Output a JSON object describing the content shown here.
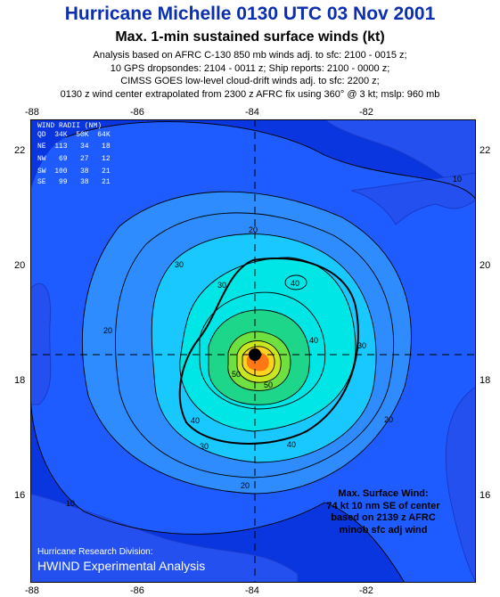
{
  "header": {
    "title": "Hurricane Michelle 0130 UTC 03 Nov 2001",
    "subtitle": "Max. 1-min sustained surface winds (kt)",
    "notes": [
      "Analysis based on AFRC C-130 850 mb winds adj. to sfc: 2100 - 0015 z;",
      "10 GPS dropsondes: 2104 - 0011 z; Ship reports: 2100 - 0000 z;",
      "CIMSS GOES low-level cloud-drift winds adj. to sfc: 2200 z;",
      "0130 z wind center extrapolated from 2300 z AFRC fix using 360° @ 3 kt; mslp: 960 mb"
    ]
  },
  "axes": {
    "lon_labels": [
      "-88",
      "-86",
      "-84",
      "-82"
    ],
    "lat_labels": [
      "22",
      "20",
      "18",
      "16"
    ]
  },
  "wind_radii": {
    "title": "WIND RADII (NM)",
    "header": "QD  34K  50K  64K",
    "rows": [
      "NE  113   34   18",
      "NW   69   27   12",
      "SW  100   38   21",
      "SE   99   38   21"
    ]
  },
  "contour_labels": [
    "10",
    "10",
    "20",
    "20",
    "20",
    "20",
    "30",
    "30",
    "30",
    "30",
    "40",
    "40",
    "40",
    "40",
    "50",
    "50"
  ],
  "max_wind": [
    "Max. Surface Wind:",
    "74 kt 10 nm SE of center",
    "based on  2139 z AFRC",
    "minob sfc adj wind"
  ],
  "credits": {
    "line1": "Hurricane Research Division:",
    "line2": "HWIND Experimental Analysis"
  },
  "colors": {
    "ocean_low": "#0a36e0",
    "ocean_mid": "#1e5cff",
    "band_20": "#2e8cff",
    "band_30": "#19c8ff",
    "band_40": "#00e6e6",
    "band_50": "#1ed68a",
    "band_55": "#6ee040",
    "band_60": "#c8e61e",
    "band_65": "#ffd21e",
    "band_70": "#ff7814",
    "land": "#2450f0"
  }
}
